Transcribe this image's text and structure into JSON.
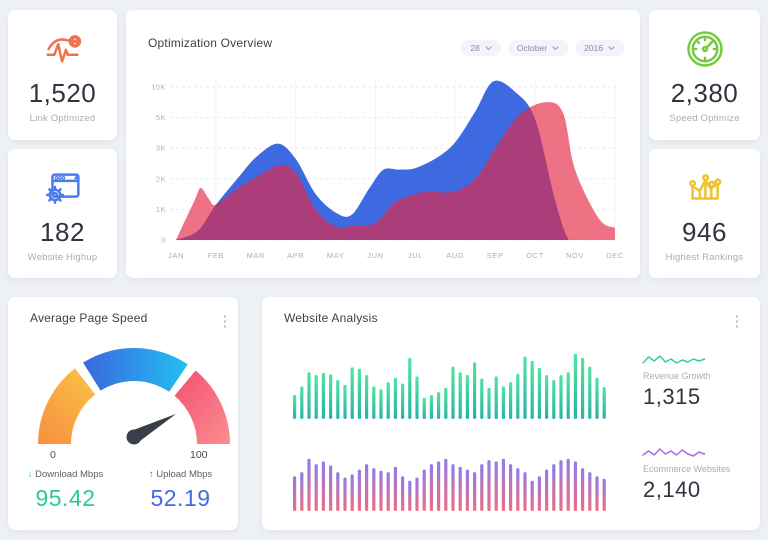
{
  "stats": [
    {
      "value": "1,520",
      "label": "Link Optimized",
      "accent": "#f0714c"
    },
    {
      "value": "182",
      "label": "Website Highup",
      "accent": "#4a7bf0"
    },
    {
      "value": "2,380",
      "label": "Speed Optimize",
      "accent": "#76c940"
    },
    {
      "value": "946",
      "label": "Highest Rankings",
      "accent": "#efc22f"
    }
  ],
  "overview": {
    "title": "Optimization Overview",
    "filters": [
      {
        "label": "28"
      },
      {
        "label": "October"
      },
      {
        "label": "2016"
      }
    ]
  },
  "page_speed": {
    "title": "Average Page Speed",
    "gauge_min": "0",
    "gauge_max": "100",
    "download": {
      "arrow": "↓",
      "label": "Download Mbps",
      "value": "95.42",
      "color": "#2bcb8c"
    },
    "upload": {
      "arrow": "↑",
      "label": "Upload Mbps",
      "value": "52.19",
      "color": "#4169e8"
    }
  },
  "analysis": {
    "title": "Website Analysis",
    "metrics": [
      {
        "label": "Revenue Growth",
        "value": "1,315",
        "color": "#2bd498"
      },
      {
        "label": "Ecommerce Websites",
        "value": "2,140",
        "color": "#a56ce3"
      }
    ]
  },
  "chart_data": [
    {
      "type": "area",
      "title": "Optimization Overview",
      "x_labels": [
        "JAN",
        "FEB",
        "MAR",
        "APR",
        "MAY",
        "JUN",
        "JUL",
        "AUG",
        "SEP",
        "OCT",
        "NOV",
        "DEC"
      ],
      "y_ticks": [
        "0",
        "1K",
        "2K",
        "3K",
        "5K",
        "10K"
      ],
      "y_tick_values": [
        0,
        1000,
        2000,
        3000,
        5000,
        10000
      ],
      "grid": "dashed-horizontal",
      "legend": "none",
      "series": [
        {
          "name": "series_blue",
          "color": "#3d6ae1",
          "points": [
            [
              0,
              0
            ],
            [
              0.55,
              300
            ],
            [
              1,
              1150
            ],
            [
              1.6,
              2100
            ],
            [
              2,
              2700
            ],
            [
              2.55,
              3300
            ],
            [
              3,
              2650
            ],
            [
              3.5,
              1500
            ],
            [
              4,
              900
            ],
            [
              4.4,
              820
            ],
            [
              4.85,
              1700
            ],
            [
              5.2,
              2300
            ],
            [
              5.6,
              2300
            ],
            [
              6,
              2350
            ],
            [
              6.55,
              2700
            ],
            [
              7,
              3400
            ],
            [
              7.5,
              6000
            ],
            [
              7.95,
              10900
            ],
            [
              8.5,
              9200
            ],
            [
              9,
              4900
            ],
            [
              9.5,
              1300
            ],
            [
              9.85,
              0
            ],
            [
              10.2,
              0
            ],
            [
              11,
              0
            ]
          ]
        },
        {
          "name": "series_red",
          "color": "rgba(229,39,69,0.66)",
          "points": [
            [
              0,
              0
            ],
            [
              0.45,
              1250
            ],
            [
              0.62,
              1700
            ],
            [
              0.82,
              1350
            ],
            [
              1,
              1150
            ],
            [
              1.5,
              1650
            ],
            [
              2,
              2050
            ],
            [
              2.6,
              2450
            ],
            [
              3,
              2200
            ],
            [
              3.5,
              1000
            ],
            [
              4,
              450
            ],
            [
              4.5,
              480
            ],
            [
              5,
              560
            ],
            [
              5.5,
              1250
            ],
            [
              6,
              1500
            ],
            [
              6.4,
              1600
            ],
            [
              6.8,
              1550
            ],
            [
              7.2,
              1700
            ],
            [
              7.6,
              2150
            ],
            [
              8,
              3000
            ],
            [
              8.6,
              5400
            ],
            [
              9.25,
              7500
            ],
            [
              9.7,
              5800
            ],
            [
              10,
              2300
            ],
            [
              10.6,
              700
            ],
            [
              11,
              400
            ]
          ]
        }
      ]
    },
    {
      "type": "bar",
      "name": "website_analysis_top",
      "color_top": "#52e5a0",
      "color_bottom": "#26b3a7",
      "values": [
        34,
        46,
        66,
        62,
        65,
        63,
        55,
        48,
        73,
        71,
        62,
        46,
        42,
        52,
        58,
        50,
        86,
        60,
        30,
        34,
        38,
        44,
        74,
        66,
        62,
        80,
        57,
        44,
        60,
        46,
        52,
        64,
        88,
        82,
        72,
        62,
        55,
        62,
        66,
        92,
        86,
        74,
        58,
        45
      ]
    },
    {
      "type": "bar",
      "name": "website_analysis_bottom",
      "color_top": "#8f7ceb",
      "color_bottom": "#f06c81",
      "values": [
        52,
        58,
        78,
        70,
        74,
        68,
        58,
        50,
        55,
        62,
        70,
        64,
        60,
        58,
        66,
        52,
        45,
        50,
        62,
        70,
        74,
        78,
        70,
        66,
        62,
        58,
        70,
        76,
        74,
        78,
        70,
        64,
        58,
        45,
        52,
        62,
        70,
        76,
        78,
        74,
        64,
        58,
        52,
        48
      ]
    },
    {
      "type": "gauge",
      "name": "average_page_speed",
      "min": 0,
      "max": 100,
      "needle_value": 84,
      "needle_color": "#3a3e48",
      "segments": [
        {
          "from": 180,
          "to": 128,
          "color_start": "#f78f3f",
          "color_end": "#fbbc45"
        },
        {
          "from": 122,
          "to": 56,
          "color_start": "#3a67de",
          "color_end": "#23bff1"
        },
        {
          "from": 50,
          "to": 0,
          "color_start": "#f44e71",
          "color_end": "#fa8e90"
        }
      ]
    },
    {
      "type": "line",
      "name": "revenue_growth_spark",
      "color": "#2bd498",
      "values": [
        10,
        4,
        8,
        3,
        9,
        6,
        10,
        7,
        9,
        6,
        8,
        6
      ]
    },
    {
      "type": "line",
      "name": "ecommerce_websites_spark",
      "color": "#a56ce3",
      "values": [
        9,
        5,
        9,
        3,
        8,
        5,
        9,
        4,
        8,
        10,
        6,
        8
      ]
    }
  ]
}
